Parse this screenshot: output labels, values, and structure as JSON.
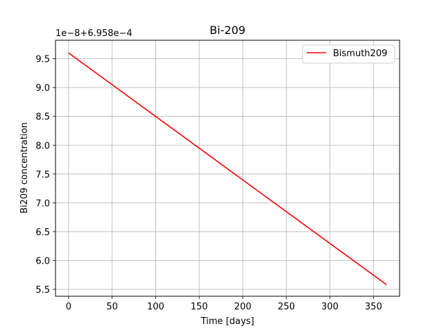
{
  "chart_data": {
    "type": "line",
    "title": "Bi-209",
    "xlabel": "Time [days]",
    "ylabel": "Bi209 concentration",
    "y_offset_text": "1e−8+6.958e−4",
    "xlim": [
      -15,
      380
    ],
    "ylim": [
      5.38,
      9.82
    ],
    "xticks": [
      0,
      50,
      100,
      150,
      200,
      250,
      300,
      350
    ],
    "yticks": [
      5.5,
      6.0,
      6.5,
      7.0,
      7.5,
      8.0,
      8.5,
      9.0,
      9.5
    ],
    "xtick_labels": [
      "0",
      "50",
      "100",
      "150",
      "200",
      "250",
      "300",
      "350"
    ],
    "ytick_labels": [
      "5.5",
      "6.0",
      "6.5",
      "7.0",
      "7.5",
      "8.0",
      "8.5",
      "9.0",
      "9.5"
    ],
    "grid": true,
    "legend": "upper right",
    "series": [
      {
        "name": "Bismuth209",
        "color": "#ff0000",
        "x": [
          0,
          365
        ],
        "y": [
          9.6,
          5.58
        ]
      }
    ]
  }
}
